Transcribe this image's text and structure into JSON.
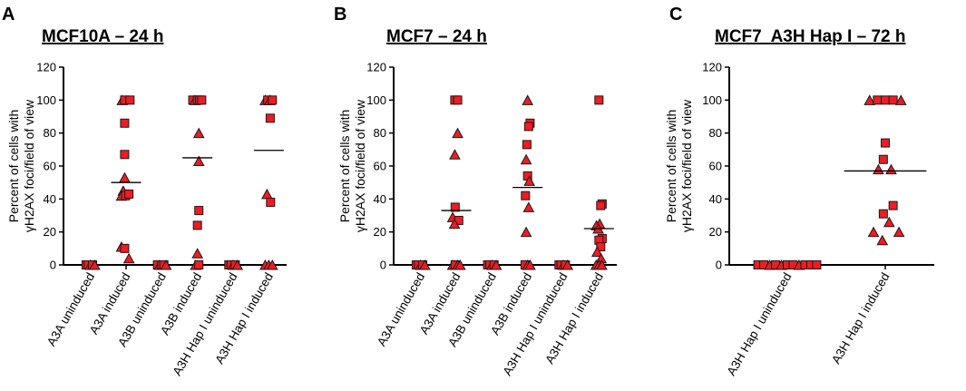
{
  "figure": {
    "marker_color": "#ee1c24",
    "marker_stroke": "#1a1a1a",
    "axis_color": "#000000"
  },
  "chart_data": [
    {
      "type": "scatter",
      "panel_letter": "A",
      "title": "MCF10A – 24 h",
      "ylabel_line1": "Percent of cells with",
      "ylabel_line2": "γH2AX foci/field of view",
      "ylim": [
        0,
        120
      ],
      "yticks": [
        "0",
        "20",
        "40",
        "60",
        "80",
        "100",
        "120"
      ],
      "categories": [
        "A3A uninduced",
        "A3A induced",
        "A3B uninduced",
        "A3B induced",
        "A3H Hap I uninduced",
        "A3H Hap I induced"
      ],
      "means": [
        0,
        50,
        0,
        65,
        0,
        69.5
      ],
      "groups": [
        {
          "category": "A3A uninduced",
          "points": [
            {
              "v": 0,
              "m": "s",
              "o": -0.12
            },
            {
              "v": 0,
              "m": "s",
              "o": -0.06
            },
            {
              "v": 0,
              "m": "t",
              "o": 0.0
            },
            {
              "v": 0,
              "m": "s",
              "o": 0.06
            },
            {
              "v": 0,
              "m": "t",
              "o": 0.12
            }
          ]
        },
        {
          "category": "A3A induced",
          "points": [
            {
              "v": 100,
              "m": "t",
              "o": -0.11
            },
            {
              "v": 100,
              "m": "s",
              "o": -0.04
            },
            {
              "v": 100,
              "m": "s",
              "o": 0.11
            },
            {
              "v": 86,
              "m": "s",
              "o": -0.04
            },
            {
              "v": 67,
              "m": "s",
              "o": -0.04
            },
            {
              "v": 53,
              "m": "t",
              "o": -0.04
            },
            {
              "v": 45,
              "m": "t",
              "o": -0.08
            },
            {
              "v": 42,
              "m": "t",
              "o": -0.13
            },
            {
              "v": 42,
              "m": "s",
              "o": -0.01
            },
            {
              "v": 43,
              "m": "s",
              "o": 0.08
            },
            {
              "v": 11,
              "m": "t",
              "o": -0.13
            },
            {
              "v": 10,
              "m": "s",
              "o": -0.04
            },
            {
              "v": 4,
              "m": "t",
              "o": 0.08
            }
          ]
        },
        {
          "category": "A3B uninduced",
          "points": [
            {
              "v": 0,
              "m": "s",
              "o": -0.12
            },
            {
              "v": 0,
              "m": "t",
              "o": -0.06
            },
            {
              "v": 0,
              "m": "s",
              "o": 0.0
            },
            {
              "v": 0,
              "m": "s",
              "o": 0.06
            },
            {
              "v": 0,
              "m": "t",
              "o": 0.12
            }
          ]
        },
        {
          "category": "A3B induced",
          "points": [
            {
              "v": 100,
              "m": "s",
              "o": -0.13
            },
            {
              "v": 100,
              "m": "t",
              "o": -0.07
            },
            {
              "v": 100,
              "m": "s",
              "o": 0.0
            },
            {
              "v": 100,
              "m": "s",
              "o": 0.06
            },
            {
              "v": 100,
              "m": "s",
              "o": 0.12
            },
            {
              "v": 80,
              "m": "t",
              "o": 0.04
            },
            {
              "v": 63,
              "m": "t",
              "o": 0.04
            },
            {
              "v": 33,
              "m": "s",
              "o": 0.04
            },
            {
              "v": 24,
              "m": "s",
              "o": 0.0
            },
            {
              "v": 7,
              "m": "t",
              "o": 0.0
            },
            {
              "v": 0,
              "m": "t",
              "o": -0.05
            },
            {
              "v": 0,
              "m": "s",
              "o": 0.04
            }
          ]
        },
        {
          "category": "A3H Hap I uninduced",
          "points": [
            {
              "v": 0,
              "m": "s",
              "o": -0.12
            },
            {
              "v": 0,
              "m": "s",
              "o": -0.06
            },
            {
              "v": 0,
              "m": "t",
              "o": 0.0
            },
            {
              "v": 0,
              "m": "s",
              "o": 0.06
            },
            {
              "v": 0,
              "m": "t",
              "o": 0.12
            }
          ]
        },
        {
          "category": "A3H Hap I induced",
          "points": [
            {
              "v": 100,
              "m": "t",
              "o": -0.1
            },
            {
              "v": 100,
              "m": "s",
              "o": -0.03
            },
            {
              "v": 100,
              "m": "t",
              "o": 0.03
            },
            {
              "v": 100,
              "m": "s",
              "o": 0.1
            },
            {
              "v": 89,
              "m": "s",
              "o": 0.04
            },
            {
              "v": 43,
              "m": "t",
              "o": -0.05
            },
            {
              "v": 38,
              "m": "s",
              "o": 0.05
            },
            {
              "v": 0,
              "m": "t",
              "o": -0.1
            },
            {
              "v": 0,
              "m": "t",
              "o": 0.0
            },
            {
              "v": 0,
              "m": "t",
              "o": 0.1
            }
          ]
        }
      ]
    },
    {
      "type": "scatter",
      "panel_letter": "B",
      "title": "MCF7 – 24 h",
      "ylabel_line1": "Percent of cells with",
      "ylabel_line2": "γH2AX foci/field of view",
      "ylim": [
        0,
        120
      ],
      "yticks": [
        "0",
        "20",
        "40",
        "60",
        "80",
        "100",
        "120"
      ],
      "categories": [
        "A3A uninduced",
        "A3A induced",
        "A3B uninduced",
        "A3B induced",
        "A3H Hap I uninduced",
        "A3H Hap I induced"
      ],
      "means": [
        0,
        33,
        0,
        47,
        0,
        22
      ],
      "groups": [
        {
          "category": "A3A uninduced",
          "points": [
            {
              "v": 0,
              "m": "s",
              "o": -0.12
            },
            {
              "v": 0,
              "m": "s",
              "o": -0.06
            },
            {
              "v": 0,
              "m": "t",
              "o": 0.0
            },
            {
              "v": 0,
              "m": "s",
              "o": 0.06
            },
            {
              "v": 0,
              "m": "t",
              "o": 0.12
            }
          ]
        },
        {
          "category": "A3A induced",
          "points": [
            {
              "v": 100,
              "m": "s",
              "o": -0.04
            },
            {
              "v": 100,
              "m": "s",
              "o": 0.04
            },
            {
              "v": 80,
              "m": "t",
              "o": 0.04
            },
            {
              "v": 67,
              "m": "t",
              "o": -0.04
            },
            {
              "v": 35,
              "m": "s",
              "o": -0.03
            },
            {
              "v": 29,
              "m": "t",
              "o": -0.1
            },
            {
              "v": 27,
              "m": "s",
              "o": 0.07
            },
            {
              "v": 25,
              "m": "t",
              "o": -0.05
            },
            {
              "v": 0,
              "m": "t",
              "o": -0.1
            },
            {
              "v": 0,
              "m": "s",
              "o": -0.03
            },
            {
              "v": 0,
              "m": "t",
              "o": 0.04
            },
            {
              "v": 0,
              "m": "t",
              "o": 0.11
            }
          ]
        },
        {
          "category": "A3B uninduced",
          "points": [
            {
              "v": 0,
              "m": "s",
              "o": -0.12
            },
            {
              "v": 0,
              "m": "s",
              "o": -0.06
            },
            {
              "v": 0,
              "m": "t",
              "o": 0.0
            },
            {
              "v": 0,
              "m": "s",
              "o": 0.06
            },
            {
              "v": 0,
              "m": "t",
              "o": 0.12
            }
          ]
        },
        {
          "category": "A3B induced",
          "points": [
            {
              "v": 100,
              "m": "t",
              "o": 0.0
            },
            {
              "v": 86,
              "m": "s",
              "o": 0.07
            },
            {
              "v": 84,
              "m": "s",
              "o": 0.03
            },
            {
              "v": 73,
              "m": "s",
              "o": -0.02
            },
            {
              "v": 64,
              "m": "t",
              "o": -0.04
            },
            {
              "v": 54,
              "m": "s",
              "o": 0.0
            },
            {
              "v": 51,
              "m": "t",
              "o": 0.05
            },
            {
              "v": 42,
              "m": "s",
              "o": -0.06
            },
            {
              "v": 35,
              "m": "t",
              "o": 0.03
            },
            {
              "v": 20,
              "m": "t",
              "o": -0.04
            },
            {
              "v": 0,
              "m": "s",
              "o": -0.07
            },
            {
              "v": 0,
              "m": "t",
              "o": 0.0
            },
            {
              "v": 0,
              "m": "t",
              "o": 0.07
            }
          ]
        },
        {
          "category": "A3H Hap I uninduced",
          "points": [
            {
              "v": 0,
              "m": "s",
              "o": -0.12
            },
            {
              "v": 0,
              "m": "s",
              "o": -0.06
            },
            {
              "v": 0,
              "m": "t",
              "o": 0.0
            },
            {
              "v": 0,
              "m": "s",
              "o": 0.06
            },
            {
              "v": 0,
              "m": "t",
              "o": 0.12
            }
          ]
        },
        {
          "category": "A3H Hap I induced",
          "points": [
            {
              "v": 100,
              "m": "s",
              "o": 0.0
            },
            {
              "v": 37,
              "m": "s",
              "o": 0.09
            },
            {
              "v": 36,
              "m": "s",
              "o": 0.05
            },
            {
              "v": 25,
              "m": "t",
              "o": 0.02
            },
            {
              "v": 24,
              "m": "t",
              "o": -0.07
            },
            {
              "v": 22,
              "m": "t",
              "o": -0.02
            },
            {
              "v": 16,
              "m": "s",
              "o": 0.09
            },
            {
              "v": 15,
              "m": "s",
              "o": 0.0
            },
            {
              "v": 11,
              "m": "s",
              "o": 0.05
            },
            {
              "v": 8,
              "m": "t",
              "o": -0.05
            },
            {
              "v": 4,
              "m": "t",
              "o": 0.06
            },
            {
              "v": 0,
              "m": "t",
              "o": -0.08
            },
            {
              "v": 0,
              "m": "t",
              "o": 0.0
            },
            {
              "v": 0,
              "m": "t",
              "o": 0.08
            }
          ]
        }
      ]
    },
    {
      "type": "scatter",
      "panel_letter": "C",
      "title": "MCF7  A3H Hap I – 72 h",
      "ylabel_line1": "Percent of cells with",
      "ylabel_line2": "γH2AX foci/field of view",
      "ylim": [
        0,
        120
      ],
      "yticks": [
        "0",
        "20",
        "40",
        "60",
        "80",
        "100",
        "120"
      ],
      "categories": [
        "A3H Hap I uninduced",
        "A3H Hap I induced"
      ],
      "means": [
        0,
        57
      ],
      "groups": [
        {
          "category": "A3H Hap I uninduced",
          "points": [
            {
              "v": 0,
              "m": "s",
              "o": -0.3
            },
            {
              "v": 0,
              "m": "s",
              "o": -0.24
            },
            {
              "v": 0,
              "m": "t",
              "o": -0.18
            },
            {
              "v": 0,
              "m": "s",
              "o": -0.12
            },
            {
              "v": 0,
              "m": "t",
              "o": -0.06
            },
            {
              "v": 0,
              "m": "s",
              "o": 0.0
            },
            {
              "v": 0,
              "m": "s",
              "o": 0.06
            },
            {
              "v": 0,
              "m": "t",
              "o": 0.12
            },
            {
              "v": 0,
              "m": "s",
              "o": 0.18
            },
            {
              "v": 0,
              "m": "s",
              "o": 0.24
            },
            {
              "v": 0,
              "m": "s",
              "o": 0.3
            }
          ]
        },
        {
          "category": "A3H Hap I induced",
          "points": [
            {
              "v": 100,
              "m": "t",
              "o": -0.16
            },
            {
              "v": 100,
              "m": "s",
              "o": -0.08
            },
            {
              "v": 100,
              "m": "s",
              "o": 0.0
            },
            {
              "v": 100,
              "m": "s",
              "o": 0.08
            },
            {
              "v": 100,
              "m": "t",
              "o": 0.16
            },
            {
              "v": 74,
              "m": "s",
              "o": 0.0
            },
            {
              "v": 64,
              "m": "s",
              "o": -0.02
            },
            {
              "v": 58,
              "m": "t",
              "o": -0.07
            },
            {
              "v": 58,
              "m": "t",
              "o": 0.06
            },
            {
              "v": 36,
              "m": "s",
              "o": 0.08
            },
            {
              "v": 31,
              "m": "s",
              "o": -0.02
            },
            {
              "v": 26,
              "m": "t",
              "o": 0.04
            },
            {
              "v": 20,
              "m": "t",
              "o": -0.12
            },
            {
              "v": 20,
              "m": "t",
              "o": 0.14
            },
            {
              "v": 15,
              "m": "t",
              "o": -0.03
            }
          ]
        }
      ]
    }
  ]
}
